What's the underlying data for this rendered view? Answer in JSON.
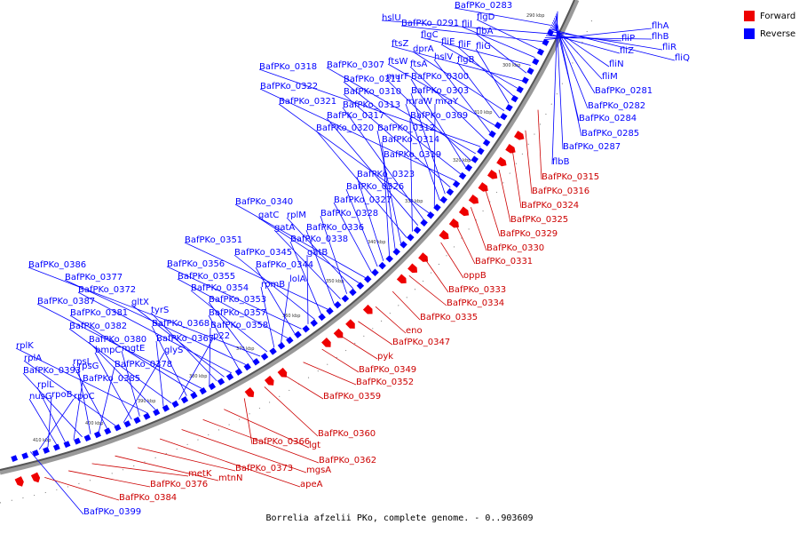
{
  "caption": "Borrelia afzelii PKo, complete genome. - 0..903609",
  "legend": [
    {
      "label": "Forward",
      "color": "#ee0000"
    },
    {
      "label": "Reverse",
      "color": "#0000ff"
    }
  ],
  "ticks": [
    {
      "label": "290 kbp"
    },
    {
      "label": "300 kbp"
    },
    {
      "label": "310 kbp"
    },
    {
      "label": "320 kbp"
    },
    {
      "label": "330 kbp"
    },
    {
      "label": "340 kbp"
    },
    {
      "label": "350 kbp"
    },
    {
      "label": "360 kbp"
    },
    {
      "label": "370 kbp"
    },
    {
      "label": "380 kbp"
    },
    {
      "label": "390 kbp"
    },
    {
      "label": "400 kbp"
    },
    {
      "label": "410 kbp"
    }
  ],
  "reverse_labels": [
    "BafPKo_0283",
    "hslU",
    "BafPKo_0291",
    "flgD",
    "fliI",
    "flgC",
    "flbA",
    "ftsZ",
    "fliE",
    "fliF",
    "fliG",
    "dprA",
    "flgB",
    "ftsW",
    "hslV",
    "ftsA",
    "BafPKo_0318",
    "BafPKo_0307",
    "murF",
    "BafPKo_0300",
    "BafPKo_0311",
    "BafPKo_0322",
    "BafPKo_0310",
    "BafPKo_0303",
    "mraW",
    "mraY",
    "BafPKo_0321",
    "BafPKo_0313",
    "BafPKo_0317",
    "BafPKo_0309",
    "BafPKo_0320",
    "BafPKo_0312",
    "BafPKo_0314",
    "BafPKo_0319",
    "BafPKo_0323",
    "BafPKo_0326",
    "BafPKo_0327",
    "BafPKo_0340",
    "gatC",
    "rplM",
    "BafPKo_0328",
    "gatA",
    "BafPKo_0336",
    "BafPKo_0351",
    "BafPKo_0338",
    "BafPKo_0345",
    "gatB",
    "BafPKo_0356",
    "BafPKo_0344",
    "BafPKo_0355",
    "lolA",
    "rpmB",
    "BafPKo_0354",
    "BafPKo_0386",
    "BafPKo_0353",
    "BafPKo_0377",
    "BafPKo_0357",
    "BafPKo_0372",
    "gltX",
    "tyrS",
    "BafPKo_0358",
    "BafPKo_0387",
    "BafPKo_0381",
    "BafPKo_0368",
    "p22",
    "BafPKo_0382",
    "BafPKo_0367",
    "BafPKo_0380",
    "rplK",
    "mgtE",
    "bmpC",
    "glyS",
    "rplA",
    "rpsL",
    "BafPKo_0378",
    "rpsG",
    "BafPKo_0393",
    "BafPKo_0385",
    "rplL",
    "nusG",
    "rpoB",
    "rpoC",
    "BafPKo_0399"
  ],
  "reverse_right_labels": [
    "flhA",
    "flhB",
    "fliP",
    "fliZ",
    "fliR",
    "fliQ",
    "fliN",
    "fliM",
    "BafPKo_0281",
    "BafPKo_0282",
    "BafPKo_0284",
    "BafPKo_0285",
    "BafPKo_0287",
    "flbB"
  ],
  "forward_labels": [
    "BafPKo_0315",
    "BafPKo_0316",
    "BafPKo_0324",
    "BafPKo_0325",
    "BafPKo_0329",
    "BafPKo_0330",
    "BafPKo_0331",
    "oppB",
    "BafPKo_0333",
    "BafPKo_0334",
    "BafPKo_0335",
    "eno",
    "BafPKo_0347",
    "pyk",
    "BafPKo_0349",
    "BafPKo_0352",
    "BafPKo_0359",
    "BafPKo_0360",
    "BafPKo_0366",
    "lgt",
    "BafPKo_0362",
    "mgsA",
    "apeA",
    "BafPKo_0373",
    "mtnN",
    "metK",
    "BafPKo_0376",
    "BafPKo_0384"
  ]
}
